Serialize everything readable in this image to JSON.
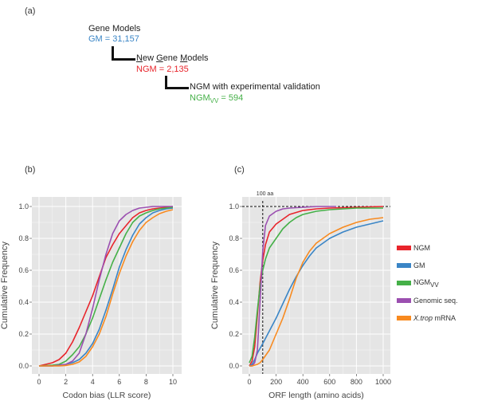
{
  "panel_a": {
    "label": "(a)",
    "level1": {
      "title": "Gene Models",
      "value": "GM = 31,157"
    },
    "level2": {
      "title_parts": [
        "N",
        "ew ",
        "G",
        "ene ",
        "M",
        "odels"
      ],
      "value": "NGM = 2,135"
    },
    "level3": {
      "title": "NGM with experimental validation",
      "value_prefix": "NGM",
      "value_sub": "VV",
      "value_suffix": " = 594"
    }
  },
  "colors": {
    "NGM": "#e8242b",
    "GM": "#3a85c6",
    "NGMvv": "#45b048",
    "Genomic": "#9b4fb0",
    "Xtrop": "#f88a1f",
    "panel_bg": "#e5e5e5",
    "grid": "#ffffff"
  },
  "legend": {
    "items": [
      {
        "key": "NGM",
        "label": "NGM",
        "sub": "",
        "italic_prefix": ""
      },
      {
        "key": "GM",
        "label": "GM",
        "sub": "",
        "italic_prefix": ""
      },
      {
        "key": "NGMvv",
        "label": "NGM",
        "sub": "VV",
        "italic_prefix": ""
      },
      {
        "key": "Genomic",
        "label": "Genomic seq.",
        "sub": "",
        "italic_prefix": ""
      },
      {
        "key": "Xtrop",
        "label": " mRNA",
        "sub": "",
        "italic_prefix": "X.trop"
      }
    ]
  },
  "chart_data": [
    {
      "panel_label": "(b)",
      "type": "line",
      "title": "",
      "xlabel": "Codon bias (LLR score)",
      "ylabel": "Cumulative Frequency",
      "xlim": [
        0,
        10
      ],
      "ylim": [
        0,
        1
      ],
      "xticks": [
        "0",
        "2",
        "4",
        "6",
        "8",
        "10"
      ],
      "xtick_values": [
        0,
        2,
        4,
        6,
        8,
        10
      ],
      "yticks": [
        "0.0",
        "0.2",
        "0.4",
        "0.6",
        "0.8",
        "1.0"
      ],
      "ytick_values": [
        0,
        0.2,
        0.4,
        0.6,
        0.8,
        1.0
      ],
      "grid": true,
      "series": [
        {
          "name": "NGM",
          "key": "NGM",
          "x": [
            0,
            0.5,
            1,
            1.5,
            2,
            2.5,
            3,
            3.5,
            4,
            4.5,
            5,
            5.5,
            6,
            6.5,
            7,
            7.5,
            8,
            8.5,
            9,
            9.5,
            10
          ],
          "y": [
            0.0,
            0.01,
            0.02,
            0.04,
            0.08,
            0.15,
            0.24,
            0.34,
            0.44,
            0.56,
            0.68,
            0.76,
            0.83,
            0.88,
            0.93,
            0.96,
            0.975,
            0.985,
            0.99,
            0.995,
            1.0
          ]
        },
        {
          "name": "GM",
          "key": "GM",
          "x": [
            0,
            1,
            1.5,
            2,
            2.5,
            3,
            3.5,
            4,
            4.5,
            5,
            5.5,
            6,
            6.5,
            7,
            7.5,
            8,
            8.5,
            9,
            9.5,
            10
          ],
          "y": [
            0.0,
            0.0,
            0.005,
            0.01,
            0.02,
            0.04,
            0.08,
            0.14,
            0.23,
            0.35,
            0.48,
            0.62,
            0.73,
            0.82,
            0.89,
            0.93,
            0.96,
            0.975,
            0.985,
            0.99
          ]
        },
        {
          "name": "NGMvv",
          "key": "NGMvv",
          "x": [
            0,
            1,
            1.5,
            2,
            2.5,
            3,
            3.5,
            4,
            4.5,
            5,
            5.5,
            6,
            6.5,
            7,
            7.5,
            8,
            8.5,
            9,
            9.5,
            10
          ],
          "y": [
            0.0,
            0.005,
            0.01,
            0.03,
            0.07,
            0.12,
            0.2,
            0.3,
            0.42,
            0.54,
            0.65,
            0.74,
            0.83,
            0.9,
            0.94,
            0.96,
            0.975,
            0.985,
            0.99,
            0.995
          ]
        },
        {
          "name": "Genomic seq.",
          "key": "Genomic",
          "x": [
            0,
            1,
            1.5,
            2,
            2.5,
            3,
            3.5,
            4,
            4.5,
            5,
            5.5,
            6,
            6.5,
            7,
            7.5,
            8,
            8.5,
            9,
            9.5,
            10
          ],
          "y": [
            0.0,
            0.0,
            0.005,
            0.01,
            0.03,
            0.08,
            0.2,
            0.36,
            0.54,
            0.7,
            0.83,
            0.91,
            0.95,
            0.975,
            0.99,
            0.995,
            1.0,
            1.0,
            1.0,
            1.0
          ]
        },
        {
          "name": "X.trop mRNA",
          "key": "Xtrop",
          "x": [
            0,
            1,
            1.5,
            2,
            2.5,
            3,
            3.5,
            4,
            4.5,
            5,
            5.5,
            6,
            6.5,
            7,
            7.5,
            8,
            8.5,
            9,
            9.5,
            10
          ],
          "y": [
            0.0,
            0.0,
            0.0,
            0.003,
            0.01,
            0.025,
            0.06,
            0.12,
            0.2,
            0.31,
            0.45,
            0.58,
            0.69,
            0.78,
            0.85,
            0.9,
            0.93,
            0.955,
            0.97,
            0.98
          ]
        }
      ]
    },
    {
      "panel_label": "(c)",
      "type": "line",
      "title": "",
      "xlabel": "ORF length (amino acids)",
      "ylabel": "Cumulative Frequency",
      "xlim": [
        0,
        1000
      ],
      "ylim": [
        0,
        1
      ],
      "xticks": [
        "0",
        "200",
        "400",
        "600",
        "800",
        "1000"
      ],
      "xtick_values": [
        0,
        200,
        400,
        600,
        800,
        1000
      ],
      "yticks": [
        "0.0",
        "0.2",
        "0.4",
        "0.6",
        "0.8",
        "1.0"
      ],
      "ytick_values": [
        0,
        0.2,
        0.4,
        0.6,
        0.8,
        1.0
      ],
      "grid": true,
      "annotations": [
        {
          "type": "vline",
          "x": 100,
          "label": "100 aa",
          "style": "dashed"
        },
        {
          "type": "hline",
          "y": 1.0,
          "style": "dashed"
        }
      ],
      "series": [
        {
          "name": "NGM",
          "key": "NGM",
          "x": [
            0,
            20,
            40,
            60,
            80,
            100,
            120,
            150,
            200,
            250,
            300,
            400,
            500,
            600,
            800,
            1000
          ],
          "y": [
            0.0,
            0.03,
            0.12,
            0.32,
            0.52,
            0.66,
            0.76,
            0.84,
            0.89,
            0.92,
            0.95,
            0.975,
            0.985,
            0.99,
            0.995,
            1.0
          ]
        },
        {
          "name": "GM",
          "key": "GM",
          "x": [
            0,
            20,
            40,
            60,
            80,
            100,
            150,
            200,
            250,
            300,
            350,
            400,
            450,
            500,
            600,
            700,
            800,
            900,
            1000
          ],
          "y": [
            0.0,
            0.01,
            0.04,
            0.08,
            0.11,
            0.14,
            0.22,
            0.3,
            0.39,
            0.48,
            0.56,
            0.63,
            0.69,
            0.74,
            0.8,
            0.84,
            0.87,
            0.89,
            0.91
          ]
        },
        {
          "name": "NGMvv",
          "key": "NGMvv",
          "x": [
            0,
            20,
            40,
            60,
            80,
            100,
            120,
            150,
            200,
            250,
            300,
            350,
            400,
            500,
            600,
            800,
            1000
          ],
          "y": [
            0.02,
            0.06,
            0.18,
            0.35,
            0.5,
            0.6,
            0.67,
            0.74,
            0.8,
            0.86,
            0.9,
            0.93,
            0.95,
            0.97,
            0.98,
            0.99,
            0.99
          ]
        },
        {
          "name": "Genomic seq.",
          "key": "Genomic",
          "x": [
            0,
            20,
            40,
            60,
            80,
            100,
            120,
            150,
            200,
            250,
            300,
            400,
            500,
            600,
            650
          ],
          "y": [
            0.0,
            0.0,
            0.02,
            0.1,
            0.4,
            0.72,
            0.88,
            0.94,
            0.97,
            0.985,
            0.99,
            0.995,
            1.0,
            1.0,
            1.0
          ]
        },
        {
          "name": "X.trop mRNA",
          "key": "Xtrop",
          "x": [
            0,
            20,
            40,
            60,
            80,
            100,
            125,
            150,
            200,
            250,
            300,
            350,
            400,
            450,
            500,
            600,
            700,
            800,
            900,
            1000
          ],
          "y": [
            0.0,
            0.0,
            0.005,
            0.01,
            0.02,
            0.04,
            0.07,
            0.1,
            0.2,
            0.3,
            0.42,
            0.55,
            0.65,
            0.72,
            0.77,
            0.83,
            0.87,
            0.9,
            0.92,
            0.93
          ]
        }
      ]
    }
  ]
}
